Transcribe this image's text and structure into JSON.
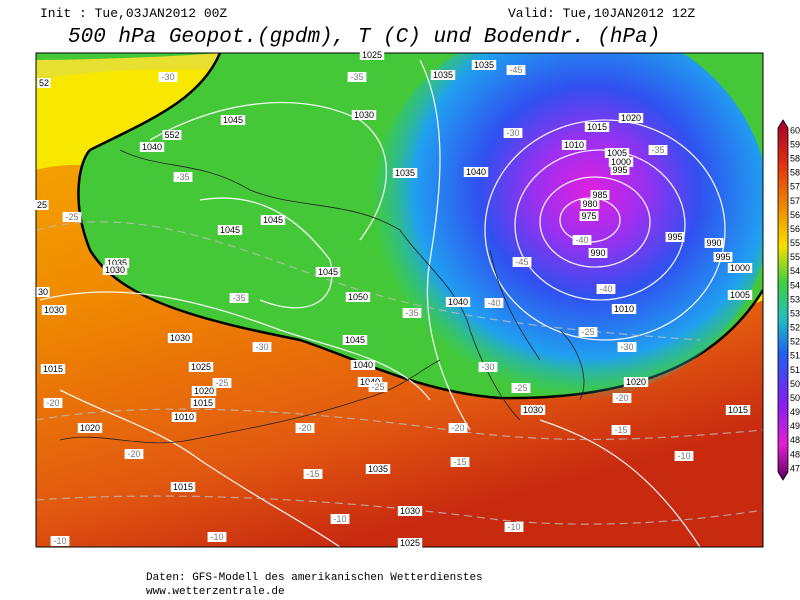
{
  "header": {
    "init": "Init : Tue,03JAN2012 00Z",
    "valid": "Valid: Tue,10JAN2012 12Z",
    "title": "500 hPa Geopot.(gpdm), T (C) und Bodendr. (hPa)"
  },
  "map": {
    "labels": [
      "1025",
      "1035",
      "1035",
      "-45",
      "-30",
      "-35",
      "52",
      "1030",
      "1045",
      "1015",
      "1020",
      "552",
      "1040",
      "-30",
      "1010",
      "1005",
      "-35",
      "1000",
      "995",
      "-35",
      "1035",
      "1040",
      "985",
      "980",
      "975",
      "25",
      "-25",
      "1045",
      "1045",
      "-40",
      "990",
      "995",
      "990",
      "995",
      "1000",
      "1035",
      "1030",
      "-45",
      "1045",
      "-40",
      "1005",
      "30",
      "1050",
      "1040",
      "-40",
      "-35",
      "1030",
      "-35",
      "1010",
      "1030",
      "1045",
      "-25",
      "-30",
      "-30",
      "1040",
      "1025",
      "-30",
      "1015",
      "-25",
      "1040",
      "-25",
      "-25",
      "1020",
      "1020",
      "1015",
      "-20",
      "-20",
      "1030",
      "1010",
      "1015",
      "-20",
      "-15",
      "1020",
      "-20",
      "-20",
      "-10",
      "-15",
      "1035",
      "-15",
      "1015",
      "1030",
      "-10",
      "-10",
      "-10",
      "-10",
      "1025"
    ]
  },
  "colorbar": {
    "labels": [
      "60",
      "59",
      "58",
      "58",
      "57",
      "57",
      "56",
      "56",
      "55",
      "55",
      "54",
      "54",
      "53",
      "53",
      "52",
      "52",
      "51",
      "51",
      "50",
      "50",
      "49",
      "49",
      "48",
      "48",
      "47"
    ]
  },
  "footer": {
    "source": "Daten: GFS-Modell des amerikanischen Wetterdienstes",
    "url": "www.wetterzentrale.de"
  }
}
